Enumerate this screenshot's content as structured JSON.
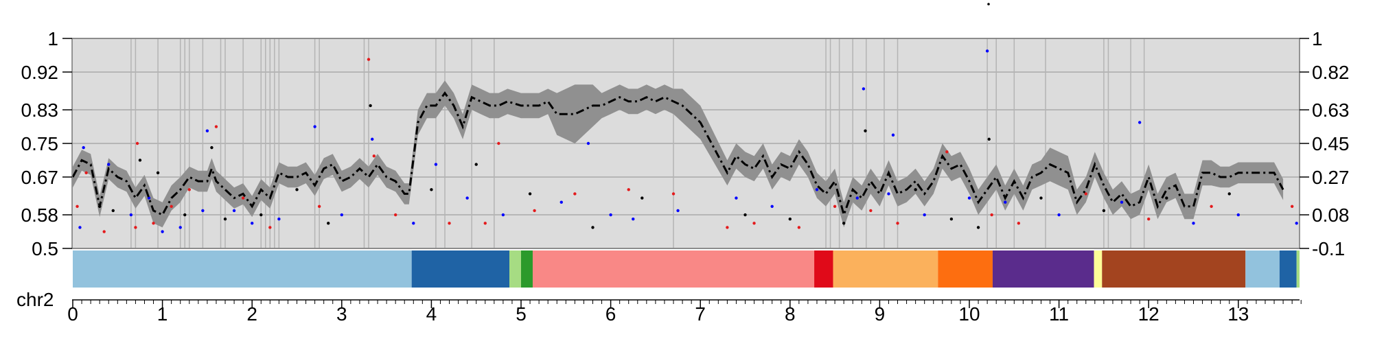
{
  "chart_data": {
    "type": "line",
    "title": "",
    "xlabel": "",
    "ylabel": "",
    "chromosome_label": "chr2",
    "xlim": [
      0,
      13.75
    ],
    "ylim": [
      0.5,
      1.0
    ],
    "x_ticks": [
      "0",
      "1",
      "2",
      "3",
      "4",
      "5",
      "6",
      "7",
      "8",
      "9",
      "10",
      "11",
      "12",
      "13"
    ],
    "y_ticks_left": [
      "0.5",
      "0.58",
      "0.67",
      "0.75",
      "0.83",
      "0.92",
      "1"
    ],
    "y_ticks_right": [
      "-0.1",
      "0.08",
      "0.27",
      "0.45",
      "0.63",
      "0.82",
      "1"
    ],
    "grid": true,
    "series": [
      {
        "style": "dash-dot",
        "color": "#000000",
        "x": [
          0.0,
          0.1,
          0.2,
          0.3,
          0.4,
          0.5,
          0.6,
          0.7,
          0.8,
          0.9,
          1.0,
          1.1,
          1.2,
          1.3,
          1.4,
          1.5,
          1.55,
          1.6,
          1.7,
          1.8,
          1.9,
          2.0,
          2.1,
          2.2,
          2.3,
          2.4,
          2.5,
          2.6,
          2.7,
          2.8,
          2.9,
          3.0,
          3.1,
          3.2,
          3.3,
          3.4,
          3.5,
          3.6,
          3.7,
          3.75,
          3.85,
          3.95,
          4.05,
          4.15,
          4.25,
          4.35,
          4.45,
          4.55,
          4.65,
          4.75,
          4.85,
          5.0,
          5.2,
          5.3,
          5.4,
          5.6,
          5.8,
          5.9,
          6.0,
          6.1,
          6.2,
          6.3,
          6.4,
          6.5,
          6.6,
          6.7,
          6.8,
          7.0,
          7.3,
          7.4,
          7.5,
          7.6,
          7.7,
          7.8,
          7.9,
          8.0,
          8.1,
          8.2,
          8.3,
          8.4,
          8.5,
          8.6,
          8.7,
          8.8,
          8.9,
          9.0,
          9.1,
          9.2,
          9.3,
          9.4,
          9.5,
          9.6,
          9.7,
          9.8,
          9.9,
          10.0,
          10.1,
          10.2,
          10.3,
          10.4,
          10.5,
          10.6,
          10.7,
          10.8,
          10.9,
          11.0,
          11.1,
          11.2,
          11.3,
          11.4,
          11.5,
          11.6,
          11.7,
          11.8,
          11.9,
          12.0,
          12.1,
          12.2,
          12.3,
          12.4,
          12.5,
          12.6,
          12.7,
          12.8,
          12.9,
          13.0,
          13.2,
          13.4,
          13.5
        ],
        "values": [
          0.67,
          0.71,
          0.7,
          0.6,
          0.69,
          0.67,
          0.66,
          0.62,
          0.65,
          0.59,
          0.58,
          0.62,
          0.64,
          0.67,
          0.66,
          0.66,
          0.69,
          0.66,
          0.64,
          0.62,
          0.63,
          0.6,
          0.64,
          0.62,
          0.68,
          0.67,
          0.67,
          0.68,
          0.65,
          0.69,
          0.7,
          0.66,
          0.67,
          0.69,
          0.67,
          0.7,
          0.67,
          0.66,
          0.63,
          0.63,
          0.8,
          0.84,
          0.84,
          0.87,
          0.84,
          0.79,
          0.86,
          0.85,
          0.84,
          0.84,
          0.85,
          0.84,
          0.84,
          0.85,
          0.82,
          0.82,
          0.84,
          0.84,
          0.85,
          0.86,
          0.85,
          0.85,
          0.86,
          0.85,
          0.86,
          0.85,
          0.84,
          0.8,
          0.68,
          0.72,
          0.7,
          0.69,
          0.72,
          0.67,
          0.7,
          0.69,
          0.73,
          0.7,
          0.65,
          0.63,
          0.66,
          0.58,
          0.64,
          0.62,
          0.66,
          0.63,
          0.68,
          0.63,
          0.64,
          0.66,
          0.63,
          0.66,
          0.72,
          0.69,
          0.7,
          0.66,
          0.61,
          0.64,
          0.67,
          0.62,
          0.66,
          0.62,
          0.67,
          0.68,
          0.7,
          0.69,
          0.68,
          0.61,
          0.64,
          0.7,
          0.65,
          0.61,
          0.63,
          0.6,
          0.61,
          0.67,
          0.6,
          0.64,
          0.65,
          0.6,
          0.6,
          0.68,
          0.68,
          0.67,
          0.67,
          0.68,
          0.68,
          0.68,
          0.64
        ],
        "band_half_width": [
          0.025,
          0.025,
          0.025,
          0.025,
          0.025,
          0.025,
          0.025,
          0.025,
          0.025,
          0.03,
          0.03,
          0.03,
          0.03,
          0.025,
          0.025,
          0.025,
          0.025,
          0.025,
          0.025,
          0.025,
          0.025,
          0.025,
          0.025,
          0.025,
          0.025,
          0.025,
          0.025,
          0.025,
          0.025,
          0.025,
          0.025,
          0.025,
          0.025,
          0.025,
          0.025,
          0.025,
          0.025,
          0.025,
          0.025,
          0.025,
          0.03,
          0.03,
          0.03,
          0.03,
          0.03,
          0.03,
          0.03,
          0.03,
          0.03,
          0.03,
          0.03,
          0.03,
          0.03,
          0.03,
          0.05,
          0.07,
          0.05,
          0.03,
          0.03,
          0.03,
          0.03,
          0.03,
          0.03,
          0.03,
          0.03,
          0.03,
          0.04,
          0.04,
          0.03,
          0.03,
          0.03,
          0.03,
          0.03,
          0.03,
          0.03,
          0.03,
          0.03,
          0.03,
          0.03,
          0.03,
          0.03,
          0.03,
          0.03,
          0.03,
          0.03,
          0.03,
          0.03,
          0.03,
          0.03,
          0.03,
          0.03,
          0.03,
          0.03,
          0.03,
          0.03,
          0.03,
          0.03,
          0.03,
          0.03,
          0.03,
          0.03,
          0.03,
          0.03,
          0.03,
          0.04,
          0.04,
          0.04,
          0.03,
          0.03,
          0.03,
          0.03,
          0.03,
          0.03,
          0.03,
          0.03,
          0.03,
          0.03,
          0.03,
          0.03,
          0.03,
          0.03,
          0.03,
          0.03,
          0.025,
          0.025,
          0.025,
          0.025,
          0.025,
          0.025
        ]
      }
    ],
    "vertical_markers": [
      0.65,
      0.7,
      0.95,
      1.2,
      1.25,
      1.3,
      1.45,
      1.65,
      1.7,
      1.9,
      2.1,
      2.15,
      2.2,
      2.25,
      2.3,
      2.7,
      2.75,
      3.25,
      3.3,
      4.05,
      4.15,
      4.45,
      4.7,
      6.7,
      8.4,
      8.45,
      8.55,
      8.7,
      8.85,
      9.05,
      9.2,
      10.2,
      10.3,
      10.5,
      10.85,
      11.5,
      11.55,
      11.8,
      11.95
    ],
    "scatter_points": [
      {
        "x": 0.05,
        "y": 0.6,
        "c": "#e41a1c"
      },
      {
        "x": 0.08,
        "y": 0.55,
        "c": "#0000ff"
      },
      {
        "x": 0.12,
        "y": 0.74,
        "c": "#0000ff"
      },
      {
        "x": 0.15,
        "y": 0.68,
        "c": "#e41a1c"
      },
      {
        "x": 0.3,
        "y": 0.6,
        "c": "#000000"
      },
      {
        "x": 0.35,
        "y": 0.54,
        "c": "#e41a1c"
      },
      {
        "x": 0.4,
        "y": 0.7,
        "c": "#0000ff"
      },
      {
        "x": 0.45,
        "y": 0.59,
        "c": "#000000"
      },
      {
        "x": 0.65,
        "y": 0.58,
        "c": "#0000ff"
      },
      {
        "x": 0.7,
        "y": 0.55,
        "c": "#e41a1c"
      },
      {
        "x": 0.72,
        "y": 0.75,
        "c": "#e41a1c"
      },
      {
        "x": 0.75,
        "y": 0.71,
        "c": "#000000"
      },
      {
        "x": 0.85,
        "y": 0.62,
        "c": "#0000ff"
      },
      {
        "x": 0.9,
        "y": 0.56,
        "c": "#e41a1c"
      },
      {
        "x": 0.95,
        "y": 0.68,
        "c": "#000000"
      },
      {
        "x": 1.0,
        "y": 0.54,
        "c": "#0000ff"
      },
      {
        "x": 1.1,
        "y": 0.6,
        "c": "#e41a1c"
      },
      {
        "x": 1.2,
        "y": 0.55,
        "c": "#0000ff"
      },
      {
        "x": 1.25,
        "y": 0.58,
        "c": "#000000"
      },
      {
        "x": 1.3,
        "y": 0.64,
        "c": "#e41a1c"
      },
      {
        "x": 1.45,
        "y": 0.59,
        "c": "#0000ff"
      },
      {
        "x": 1.5,
        "y": 0.78,
        "c": "#0000ff"
      },
      {
        "x": 1.55,
        "y": 0.74,
        "c": "#000000"
      },
      {
        "x": 1.6,
        "y": 0.79,
        "c": "#e41a1c"
      },
      {
        "x": 1.7,
        "y": 0.57,
        "c": "#000000"
      },
      {
        "x": 1.8,
        "y": 0.59,
        "c": "#0000ff"
      },
      {
        "x": 1.9,
        "y": 0.62,
        "c": "#e41a1c"
      },
      {
        "x": 2.0,
        "y": 0.56,
        "c": "#0000ff"
      },
      {
        "x": 2.1,
        "y": 0.58,
        "c": "#000000"
      },
      {
        "x": 2.2,
        "y": 0.55,
        "c": "#e41a1c"
      },
      {
        "x": 2.3,
        "y": 0.57,
        "c": "#0000ff"
      },
      {
        "x": 2.5,
        "y": 0.64,
        "c": "#000000"
      },
      {
        "x": 2.7,
        "y": 0.79,
        "c": "#0000ff"
      },
      {
        "x": 2.75,
        "y": 0.6,
        "c": "#e41a1c"
      },
      {
        "x": 2.85,
        "y": 0.56,
        "c": "#000000"
      },
      {
        "x": 3.0,
        "y": 0.58,
        "c": "#0000ff"
      },
      {
        "x": 3.3,
        "y": 0.95,
        "c": "#e41a1c"
      },
      {
        "x": 3.32,
        "y": 0.84,
        "c": "#000000"
      },
      {
        "x": 3.34,
        "y": 0.76,
        "c": "#0000ff"
      },
      {
        "x": 3.36,
        "y": 0.72,
        "c": "#e41a1c"
      },
      {
        "x": 3.6,
        "y": 0.58,
        "c": "#e41a1c"
      },
      {
        "x": 3.8,
        "y": 0.56,
        "c": "#0000ff"
      },
      {
        "x": 4.0,
        "y": 0.64,
        "c": "#000000"
      },
      {
        "x": 4.05,
        "y": 0.7,
        "c": "#0000ff"
      },
      {
        "x": 4.2,
        "y": 0.56,
        "c": "#e41a1c"
      },
      {
        "x": 4.4,
        "y": 0.62,
        "c": "#0000ff"
      },
      {
        "x": 4.5,
        "y": 0.7,
        "c": "#000000"
      },
      {
        "x": 4.6,
        "y": 0.56,
        "c": "#e41a1c"
      },
      {
        "x": 4.75,
        "y": 0.75,
        "c": "#e41a1c"
      },
      {
        "x": 4.8,
        "y": 0.58,
        "c": "#0000ff"
      },
      {
        "x": 5.1,
        "y": 0.63,
        "c": "#000000"
      },
      {
        "x": 5.15,
        "y": 0.59,
        "c": "#e41a1c"
      },
      {
        "x": 5.45,
        "y": 0.61,
        "c": "#0000ff"
      },
      {
        "x": 5.6,
        "y": 0.63,
        "c": "#e41a1c"
      },
      {
        "x": 5.75,
        "y": 0.75,
        "c": "#0000ff"
      },
      {
        "x": 5.8,
        "y": 0.55,
        "c": "#000000"
      },
      {
        "x": 6.2,
        "y": 0.64,
        "c": "#e41a1c"
      },
      {
        "x": 6.25,
        "y": 0.57,
        "c": "#0000ff"
      },
      {
        "x": 6.35,
        "y": 0.62,
        "c": "#000000"
      },
      {
        "x": 6.7,
        "y": 0.63,
        "c": "#e41a1c"
      },
      {
        "x": 6.75,
        "y": 0.59,
        "c": "#0000ff"
      },
      {
        "x": 7.3,
        "y": 0.55,
        "c": "#e41a1c"
      },
      {
        "x": 7.4,
        "y": 0.62,
        "c": "#0000ff"
      },
      {
        "x": 7.5,
        "y": 0.58,
        "c": "#000000"
      },
      {
        "x": 7.6,
        "y": 0.56,
        "c": "#e41a1c"
      },
      {
        "x": 7.8,
        "y": 0.6,
        "c": "#0000ff"
      },
      {
        "x": 8.0,
        "y": 0.57,
        "c": "#000000"
      },
      {
        "x": 8.1,
        "y": 0.55,
        "c": "#e41a1c"
      },
      {
        "x": 8.3,
        "y": 0.64,
        "c": "#0000ff"
      },
      {
        "x": 8.5,
        "y": 0.6,
        "c": "#e41a1c"
      },
      {
        "x": 8.6,
        "y": 0.56,
        "c": "#000000"
      },
      {
        "x": 8.75,
        "y": 0.62,
        "c": "#0000ff"
      },
      {
        "x": 8.82,
        "y": 0.88,
        "c": "#0000ff"
      },
      {
        "x": 8.84,
        "y": 0.78,
        "c": "#000000"
      },
      {
        "x": 8.9,
        "y": 0.59,
        "c": "#e41a1c"
      },
      {
        "x": 9.1,
        "y": 0.63,
        "c": "#0000ff"
      },
      {
        "x": 9.15,
        "y": 0.77,
        "c": "#0000ff"
      },
      {
        "x": 9.2,
        "y": 0.56,
        "c": "#e41a1c"
      },
      {
        "x": 9.4,
        "y": 0.64,
        "c": "#000000"
      },
      {
        "x": 9.5,
        "y": 0.58,
        "c": "#0000ff"
      },
      {
        "x": 9.75,
        "y": 0.73,
        "c": "#e41a1c"
      },
      {
        "x": 9.8,
        "y": 0.57,
        "c": "#000000"
      },
      {
        "x": 10.0,
        "y": 0.62,
        "c": "#0000ff"
      },
      {
        "x": 10.2,
        "y": 0.97,
        "c": "#0000ff"
      },
      {
        "x": 10.22,
        "y": 0.76,
        "c": "#000000"
      },
      {
        "x": 10.25,
        "y": 0.58,
        "c": "#e41a1c"
      },
      {
        "x": 10.4,
        "y": 0.61,
        "c": "#0000ff"
      },
      {
        "x": 10.55,
        "y": 0.56,
        "c": "#e41a1c"
      },
      {
        "x": 10.8,
        "y": 0.62,
        "c": "#000000"
      },
      {
        "x": 11.0,
        "y": 0.58,
        "c": "#0000ff"
      },
      {
        "x": 11.3,
        "y": 0.63,
        "c": "#e41a1c"
      },
      {
        "x": 11.5,
        "y": 0.59,
        "c": "#000000"
      },
      {
        "x": 11.7,
        "y": 0.61,
        "c": "#0000ff"
      },
      {
        "x": 11.9,
        "y": 0.8,
        "c": "#0000ff"
      },
      {
        "x": 12.0,
        "y": 0.57,
        "c": "#e41a1c"
      },
      {
        "x": 12.2,
        "y": 0.62,
        "c": "#000000"
      },
      {
        "x": 12.5,
        "y": 0.56,
        "c": "#0000ff"
      },
      {
        "x": 12.7,
        "y": 0.6,
        "c": "#e41a1c"
      },
      {
        "x": 12.9,
        "y": 0.63,
        "c": "#000000"
      },
      {
        "x": 13.0,
        "y": 0.58,
        "c": "#0000ff"
      },
      {
        "x": 13.6,
        "y": 0.6,
        "c": "#e41a1c"
      },
      {
        "x": 13.65,
        "y": 0.56,
        "c": "#0000ff"
      },
      {
        "x": 10.1,
        "y": 0.55,
        "c": "#000000"
      },
      {
        "x": 6.0,
        "y": 0.58,
        "c": "#0000ff"
      }
    ],
    "segments": [
      {
        "start": 0.0,
        "end": 3.78,
        "color": "#92c2dd"
      },
      {
        "start": 3.78,
        "end": 4.87,
        "color": "#1f63a5"
      },
      {
        "start": 4.87,
        "end": 5.0,
        "color": "#a6dc83"
      },
      {
        "start": 5.0,
        "end": 5.13,
        "color": "#2b9a2b"
      },
      {
        "start": 5.13,
        "end": 8.27,
        "color": "#f98886"
      },
      {
        "start": 8.27,
        "end": 8.48,
        "color": "#e00a19"
      },
      {
        "start": 8.48,
        "end": 9.65,
        "color": "#fbb15c"
      },
      {
        "start": 9.65,
        "end": 10.26,
        "color": "#fd6e10"
      },
      {
        "start": 10.26,
        "end": 11.39,
        "color": "#5a2c8c"
      },
      {
        "start": 11.39,
        "end": 11.48,
        "color": "#fdfd98"
      },
      {
        "start": 11.48,
        "end": 13.08,
        "color": "#a3441f"
      },
      {
        "start": 13.08,
        "end": 13.46,
        "color": "#92c2dd"
      },
      {
        "start": 13.46,
        "end": 13.65,
        "color": "#1f63a5"
      },
      {
        "start": 13.65,
        "end": 13.75,
        "color": "#a6dc83"
      }
    ],
    "colors": {
      "plot_background": "#dcdcdc",
      "band": "#909090",
      "grid": "#aaaaaa",
      "marker_line": "#b4b4b4"
    }
  }
}
